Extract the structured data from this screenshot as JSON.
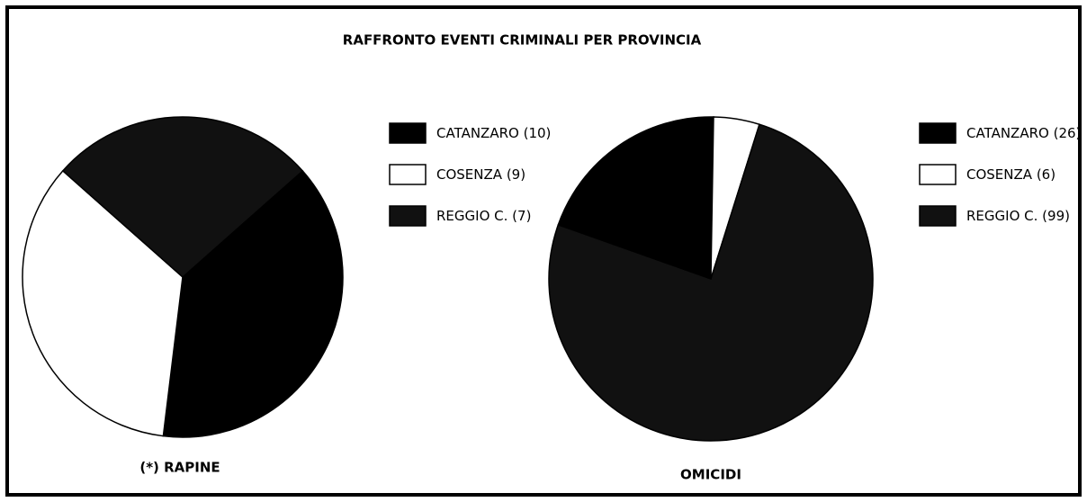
{
  "title": "RAFFRONTO EVENTI CRIMINALI PER PROVINCIA",
  "chart_data": [
    {
      "type": "pie",
      "title": "(*) RAPINE",
      "categories": [
        "CATANZARO",
        "COSENZA",
        "REGGIO C."
      ],
      "values": [
        10,
        9,
        7
      ],
      "value_labels": [
        "(10)",
        "(9)",
        "(7)"
      ],
      "colors": [
        "#000000",
        "#ffffff",
        "#111111"
      ]
    },
    {
      "type": "pie",
      "title": "OMICIDI",
      "categories": [
        "CATANZARO",
        "COSENZA",
        "REGGIO C."
      ],
      "values": [
        26,
        6,
        99
      ],
      "value_labels": [
        "(26)",
        "(6)",
        "(99)"
      ],
      "colors": [
        "#000000",
        "#ffffff",
        "#111111"
      ]
    }
  ]
}
